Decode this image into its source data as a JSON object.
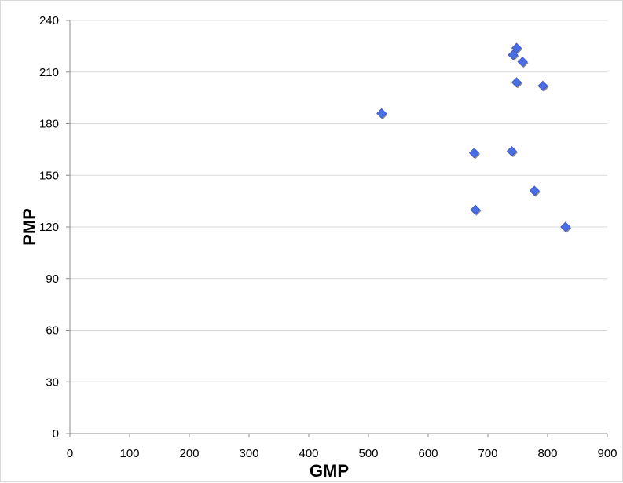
{
  "chart_data": {
    "type": "scatter",
    "xlabel": "GMP",
    "ylabel": "PMP",
    "xlim": [
      0,
      900
    ],
    "ylim": [
      0,
      240
    ],
    "xticks": [
      0,
      100,
      200,
      300,
      400,
      500,
      600,
      700,
      800,
      900
    ],
    "yticks": [
      0,
      30,
      60,
      90,
      120,
      150,
      180,
      210,
      240
    ],
    "grid": "horizontal",
    "legend": "none",
    "marker": "diamond",
    "marker_color": "#4a6ee6",
    "points": [
      {
        "x": 522,
        "y": 186
      },
      {
        "x": 677,
        "y": 163
      },
      {
        "x": 679,
        "y": 130
      },
      {
        "x": 740,
        "y": 164
      },
      {
        "x": 742,
        "y": 220
      },
      {
        "x": 748,
        "y": 224
      },
      {
        "x": 748,
        "y": 204
      },
      {
        "x": 758,
        "y": 216
      },
      {
        "x": 778,
        "y": 141
      },
      {
        "x": 792,
        "y": 202
      },
      {
        "x": 830,
        "y": 120
      }
    ]
  }
}
